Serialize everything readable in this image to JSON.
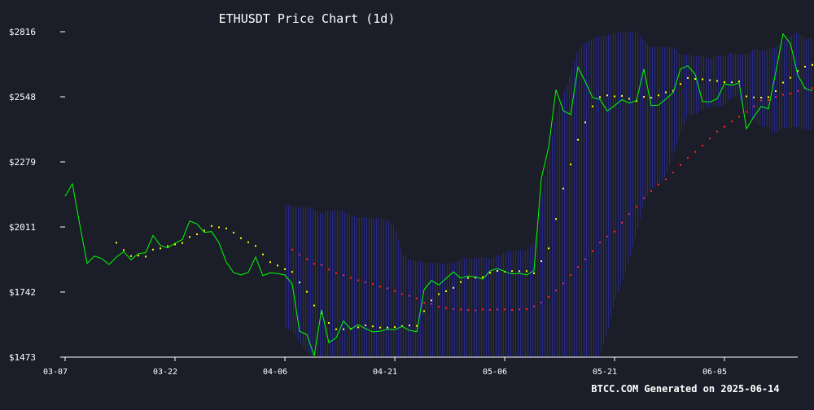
{
  "colors": {
    "background": "#1b1e29",
    "price_line": "#00ff00",
    "ma_short": "#ffff00",
    "ma_long": "#ff2020",
    "band_hatch": "#2a2aa0",
    "axis": "#ffffff",
    "text": "#ffffff"
  },
  "chart_data": {
    "type": "line",
    "title": "ETHUSDT Price Chart (1d)",
    "xlabel": "",
    "ylabel": "",
    "x_ticks": [
      "03-07",
      "03-22",
      "04-06",
      "04-21",
      "05-06",
      "05-21",
      "06-05"
    ],
    "y_ticks": [
      "$2816",
      "$2548",
      "$2279",
      "$2011",
      "$1742",
      "$1473"
    ],
    "ylim": [
      1473,
      2816
    ],
    "x_start": "03-07",
    "grid": false,
    "series": [
      {
        "kind": "line",
        "values": [
          2137,
          2188,
          2020,
          1860,
          1890,
          1880,
          1855,
          1886,
          1908,
          1875,
          1900,
          1904,
          1975,
          1934,
          1924,
          1943,
          1958,
          2035,
          2023,
          1988,
          1991,
          1945,
          1865,
          1822,
          1812,
          1823,
          1886,
          1809,
          1821,
          1818,
          1812,
          1775,
          1580,
          1566,
          1478,
          1668,
          1532,
          1553,
          1622,
          1588,
          1607,
          1591,
          1577,
          1580,
          1588,
          1586,
          1600,
          1583,
          1578,
          1752,
          1789,
          1771,
          1798,
          1825,
          1799,
          1808,
          1804,
          1795,
          1829,
          1839,
          1827,
          1816,
          1819,
          1812,
          1830,
          2210,
          2340,
          2577,
          2490,
          2474,
          2670,
          2610,
          2544,
          2537,
          2489,
          2511,
          2535,
          2522,
          2532,
          2662,
          2511,
          2513,
          2538,
          2565,
          2662,
          2676,
          2640,
          2528,
          2526,
          2539,
          2601,
          2595,
          2605,
          2415,
          2465,
          2507,
          2498,
          2650,
          2807,
          2767,
          2638,
          2582,
          2572
        ]
      },
      {
        "kind": "dots",
        "values": [
          null,
          null,
          null,
          null,
          null,
          null,
          null,
          1945,
          1915,
          1890,
          1892,
          1888,
          1917,
          1922,
          1931,
          1938,
          1944,
          1969,
          1980,
          1995,
          2014,
          2009,
          2004,
          1987,
          1964,
          1947,
          1932,
          1897,
          1865,
          1851,
          1836,
          1825,
          1781,
          1743,
          1686,
          1654,
          1614,
          1588,
          1588,
          1590,
          1596,
          1604,
          1600,
          1595,
          1595,
          1597,
          1601,
          1604,
          1602,
          1663,
          1707,
          1733,
          1745,
          1759,
          1783,
          1800,
          1801,
          1803,
          1821,
          1829,
          1826,
          1828,
          1828,
          1828,
          1819,
          1869,
          1922,
          2043,
          2169,
          2268,
          2370,
          2442,
          2508,
          2546,
          2553,
          2549,
          2551,
          2539,
          2530,
          2547,
          2544,
          2553,
          2566,
          2572,
          2600,
          2625,
          2621,
          2620,
          2616,
          2613,
          2608,
          2607,
          2611,
          2549,
          2545,
          2544,
          2546,
          2571,
          2606,
          2626,
          2654,
          2672,
          2679
        ]
      },
      {
        "kind": "dots",
        "values": [
          null,
          null,
          null,
          null,
          null,
          null,
          null,
          null,
          null,
          null,
          null,
          null,
          null,
          null,
          null,
          null,
          null,
          null,
          null,
          null,
          null,
          null,
          null,
          null,
          null,
          null,
          null,
          null,
          null,
          null,
          null,
          1917,
          1895,
          1877,
          1858,
          1853,
          1835,
          1819,
          1811,
          1800,
          1790,
          1782,
          1774,
          1764,
          1757,
          1746,
          1733,
          1726,
          1715,
          1697,
          1693,
          1681,
          1676,
          1672,
          1670,
          1667,
          1666,
          1670,
          1668,
          1670,
          1670,
          1668,
          1670,
          1671,
          1683,
          1699,
          1722,
          1748,
          1777,
          1811,
          1845,
          1877,
          1910,
          1946,
          1971,
          1991,
          2028,
          2063,
          2093,
          2129,
          2158,
          2185,
          2207,
          2235,
          2266,
          2296,
          2320,
          2346,
          2375,
          2404,
          2424,
          2446,
          2465,
          2485,
          2508,
          2532,
          2534,
          2547,
          2556,
          2561,
          2572,
          2584,
          2583
        ]
      },
      {
        "kind": "band",
        "upper": [
          null,
          null,
          null,
          null,
          null,
          null,
          null,
          null,
          null,
          null,
          null,
          null,
          null,
          null,
          null,
          null,
          null,
          null,
          null,
          null,
          null,
          null,
          null,
          null,
          null,
          null,
          null,
          null,
          null,
          null,
          2104,
          2094,
          2090,
          2095,
          2081,
          2065,
          2076,
          2076,
          2076,
          2060,
          2049,
          2050,
          2046,
          2048,
          2036,
          2015,
          1900,
          1873,
          1870,
          1865,
          1862,
          1860,
          1858,
          1862,
          1878,
          1883,
          1880,
          1886,
          1878,
          1888,
          1907,
          1912,
          1914,
          1915,
          1942,
          2120,
          2308,
          2470,
          2554,
          2648,
          2744,
          2769,
          2789,
          2798,
          2803,
          2809,
          2814,
          2816,
          2816,
          2780,
          2752,
          2752,
          2752,
          2752,
          2719,
          2724,
          2711,
          2720,
          2702,
          2720,
          2715,
          2731,
          2722,
          2723,
          2744,
          2737,
          2741,
          2754,
          2775,
          2796,
          2816,
          2786,
          2786
        ],
        "lower": [
          null,
          null,
          null,
          null,
          null,
          null,
          null,
          null,
          null,
          null,
          null,
          null,
          null,
          null,
          null,
          null,
          null,
          null,
          null,
          null,
          null,
          null,
          null,
          null,
          null,
          null,
          null,
          null,
          null,
          null,
          1600,
          1578,
          1536,
          1495,
          1481,
          1473,
          1473,
          1473,
          1473,
          1473,
          1473,
          1473,
          1473,
          1473,
          1473,
          1473,
          1473,
          1473,
          1473,
          1473,
          1473,
          1473,
          1473,
          1473,
          1473,
          1473,
          1473,
          1473,
          1473,
          1473,
          1473,
          1473,
          1473,
          1473,
          1473,
          1473,
          1473,
          1473,
          1473,
          1473,
          1473,
          1473,
          1473,
          1476,
          1573,
          1700,
          1779,
          1877,
          1983,
          2111,
          2168,
          2181,
          2222,
          2310,
          2393,
          2472,
          2475,
          2496,
          2506,
          2506,
          2512,
          2546,
          2550,
          2480,
          2450,
          2425,
          2420,
          2395,
          2418,
          2418,
          2424,
          2410,
          2410
        ]
      }
    ]
  },
  "footer": {
    "credit": "BTCC.COM Generated on 2025-06-14"
  }
}
